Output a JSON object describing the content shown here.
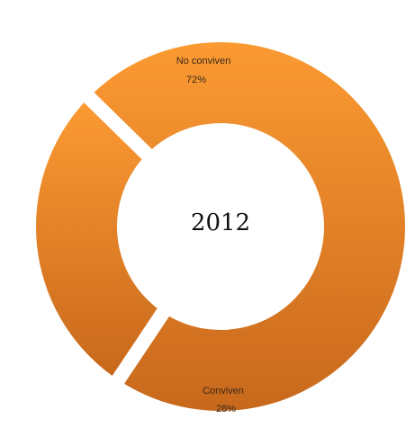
{
  "chart_data": {
    "type": "pie",
    "variant": "donut",
    "center_label": "2012",
    "slices": [
      {
        "label": "No conviven",
        "value": 72,
        "value_label": "72%"
      },
      {
        "label": "Conviven",
        "value": 28,
        "value_label": "28%"
      }
    ],
    "legend": "none",
    "colors": {
      "light": "#fb9a32",
      "dark": "#c8681c"
    }
  }
}
